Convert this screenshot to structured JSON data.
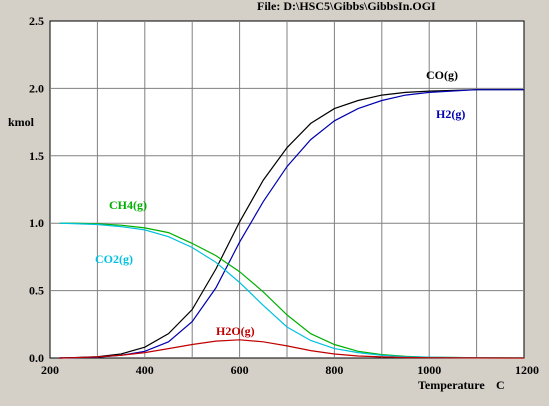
{
  "window": {
    "file_title": "File: D:\\HSC5\\Gibbs\\GibbsIn.OGI"
  },
  "colors": {
    "background": "#d4d0c8",
    "plot_area": "#ffffff",
    "grid": "#808080"
  },
  "chart_data": {
    "type": "line",
    "title": "",
    "xlabel": "Temperature",
    "xunit": "C",
    "ylabel": "kmol",
    "xlim": [
      200,
      1200
    ],
    "ylim": [
      0,
      2.5
    ],
    "xticks": [
      200,
      400,
      600,
      800,
      1000,
      1200
    ],
    "yticks": [
      "0.0",
      "0.5",
      "1.0",
      "1.5",
      "2.0",
      "2.5"
    ],
    "grid": true,
    "series": [
      {
        "name": "CO(g)",
        "color": "#000000",
        "x": [
          220,
          250,
          300,
          350,
          400,
          450,
          500,
          550,
          600,
          650,
          700,
          750,
          800,
          850,
          900,
          950,
          1000,
          1100,
          1200
        ],
        "y": [
          0.0,
          0.003,
          0.01,
          0.03,
          0.08,
          0.18,
          0.36,
          0.66,
          1.01,
          1.32,
          1.56,
          1.74,
          1.85,
          1.91,
          1.95,
          1.97,
          1.98,
          1.99,
          1.99
        ]
      },
      {
        "name": "H2(g)",
        "color": "#0000b0",
        "x": [
          220,
          250,
          300,
          350,
          400,
          450,
          500,
          550,
          600,
          650,
          700,
          750,
          800,
          850,
          900,
          950,
          1000,
          1100,
          1200
        ],
        "y": [
          0.0,
          0.002,
          0.006,
          0.02,
          0.05,
          0.12,
          0.27,
          0.52,
          0.86,
          1.16,
          1.42,
          1.62,
          1.76,
          1.85,
          1.91,
          1.95,
          1.97,
          1.99,
          1.99
        ]
      },
      {
        "name": "CH4(g)",
        "color": "#00b000",
        "x": [
          220,
          250,
          300,
          350,
          400,
          450,
          500,
          550,
          600,
          650,
          700,
          750,
          800,
          850,
          900,
          950,
          1000,
          1100,
          1200
        ],
        "y": [
          1.0,
          1.0,
          0.995,
          0.985,
          0.965,
          0.93,
          0.85,
          0.76,
          0.64,
          0.49,
          0.32,
          0.18,
          0.1,
          0.05,
          0.025,
          0.012,
          0.006,
          0.002,
          0.001
        ]
      },
      {
        "name": "CO2(g)",
        "color": "#00c0e0",
        "x": [
          220,
          250,
          300,
          350,
          400,
          450,
          500,
          550,
          600,
          650,
          700,
          750,
          800,
          850,
          900,
          950,
          1000,
          1100,
          1200
        ],
        "y": [
          1.0,
          0.997,
          0.99,
          0.975,
          0.95,
          0.9,
          0.82,
          0.71,
          0.56,
          0.39,
          0.23,
          0.13,
          0.07,
          0.04,
          0.02,
          0.01,
          0.006,
          0.002,
          0.001
        ]
      },
      {
        "name": "H2O(g)",
        "color": "#c00000",
        "x": [
          220,
          250,
          300,
          350,
          400,
          450,
          500,
          550,
          600,
          650,
          700,
          750,
          800,
          850,
          900,
          950,
          1000,
          1100,
          1200
        ],
        "y": [
          0.0,
          0.002,
          0.008,
          0.02,
          0.04,
          0.07,
          0.1,
          0.125,
          0.135,
          0.12,
          0.09,
          0.055,
          0.03,
          0.015,
          0.008,
          0.004,
          0.002,
          0.001,
          0.0
        ]
      }
    ]
  }
}
